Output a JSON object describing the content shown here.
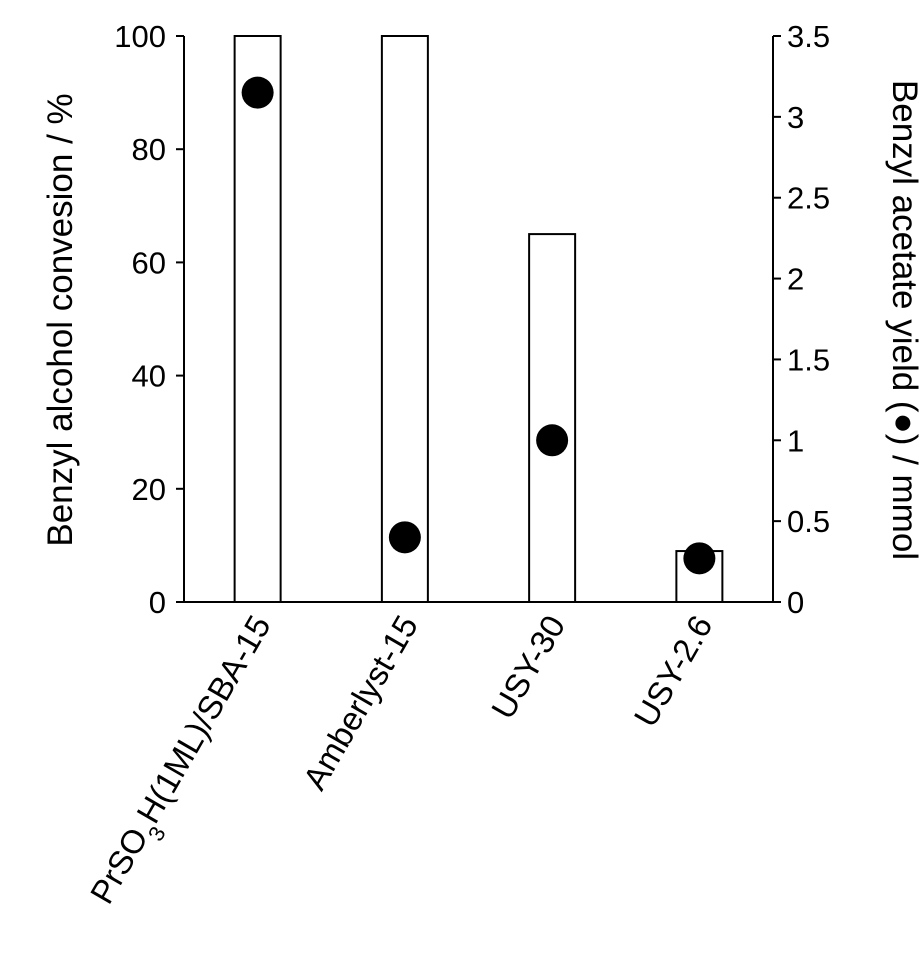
{
  "chart_data": {
    "type": "bar",
    "categories": [
      "PrSO3H(1ML)/SBA-15",
      "Amberlyst-15",
      "USY-30",
      "USY-2.6"
    ],
    "category_parts": [
      {
        "pre": "PrSO",
        "sub": "3",
        "post": "H(1ML)/SBA-15"
      },
      {
        "pre": "Amberlyst-15",
        "sub": "",
        "post": ""
      },
      {
        "pre": "USY-30",
        "sub": "",
        "post": ""
      },
      {
        "pre": "USY-2.6",
        "sub": "",
        "post": ""
      }
    ],
    "series": [
      {
        "name": "",
        "axis": "left",
        "kind": "bar",
        "values": [
          100,
          100,
          65,
          9
        ]
      },
      {
        "name": "",
        "axis": "right",
        "kind": "scatter",
        "marker": "filled-circle",
        "values": [
          3.15,
          0.4,
          1.0,
          0.27
        ]
      }
    ],
    "ylabel": "Benzyl alcohol convesion / %",
    "ylim": [
      0,
      100
    ],
    "yticks": [
      0,
      20,
      40,
      60,
      80,
      100
    ],
    "ylabel_right_pre": "Benzyl acetate yield (",
    "ylabel_right_post": ") / mmol",
    "ylim_right": [
      0,
      3.5
    ],
    "yticks_right": [
      "0",
      "0.5",
      "1",
      "1.5",
      "2",
      "2.5",
      "3",
      "3.5"
    ],
    "grid": false,
    "legend": "none",
    "colors": {
      "bar_fill": "#ffffff",
      "bar_stroke": "#000000",
      "marker": "#000000"
    }
  }
}
